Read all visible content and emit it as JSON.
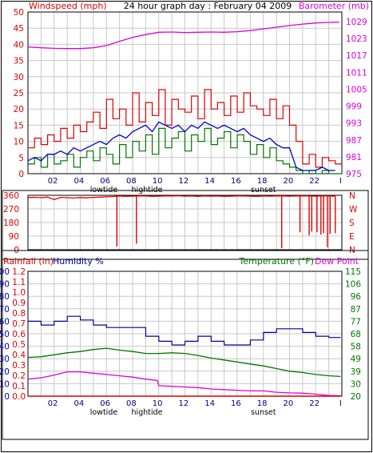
{
  "colors": {
    "windspeed": "#dd0000",
    "gust": "#dd0000",
    "average": "#0000cc",
    "barometer": "#dd00dd",
    "direction": "#dd0000",
    "rainfall": "#dd0000",
    "humidity": "#000099",
    "temperature": "#007700",
    "dewpoint": "#dd00dd",
    "grid": "#c8c8c8",
    "frame": "#000000"
  },
  "chart_data": [
    {
      "type": "line",
      "id": "wind",
      "title": "24 hour graph day : February 04 2009",
      "left_label": "Windspeed (mph)",
      "right_label": "Barometer (mb)",
      "left_ticks": [
        "0",
        "5",
        "10",
        "15",
        "20",
        "25",
        "30",
        "35",
        "40",
        "45",
        "50"
      ],
      "right_ticks": [
        "975",
        "981",
        "987",
        "993",
        "999",
        "1005",
        "1011",
        "1017",
        "1023",
        "1029"
      ],
      "ylim_left": [
        0,
        50
      ],
      "ylim_right": [
        975,
        1032.4
      ],
      "x_ticks": [
        "02",
        "04",
        "06",
        "08",
        "10",
        "12",
        "14",
        "16",
        "18",
        "20",
        "22",
        "I"
      ],
      "events": [
        {
          "label": "lowtide",
          "hour": 5.8
        },
        {
          "label": "hightide",
          "hour": 9.1
        },
        {
          "label": "sunset",
          "hour": 18.0
        }
      ],
      "series": [
        {
          "name": "gust",
          "hours": [
            0,
            0.5,
            1,
            1.5,
            2,
            2.5,
            3,
            3.5,
            4,
            4.5,
            5,
            5.5,
            6,
            6.5,
            7,
            7.5,
            8,
            8.5,
            9,
            9.5,
            10,
            10.5,
            11,
            11.5,
            12,
            12.5,
            13,
            13.5,
            14,
            14.5,
            15,
            15.5,
            16,
            16.5,
            17,
            17.5,
            18,
            18.5,
            19,
            19.5,
            20,
            20.5,
            21,
            21.5,
            22,
            22.5,
            23,
            23.5
          ],
          "values": [
            8,
            11,
            9,
            12,
            10,
            14,
            11,
            15,
            13,
            16,
            19,
            14,
            23,
            17,
            20,
            15,
            25,
            16,
            22,
            18,
            26,
            15,
            23,
            20,
            19,
            24,
            17,
            26,
            20,
            22,
            18,
            24,
            19,
            25,
            21,
            20,
            18,
            23,
            17,
            21,
            15,
            10,
            3,
            6,
            2,
            5,
            4,
            3
          ]
        },
        {
          "name": "windspeed",
          "hours": [
            0,
            0.5,
            1,
            1.5,
            2,
            2.5,
            3,
            3.5,
            4,
            4.5,
            5,
            5.5,
            6,
            6.5,
            7,
            7.5,
            8,
            8.5,
            9,
            9.5,
            10,
            10.5,
            11,
            11.5,
            12,
            12.5,
            13,
            13.5,
            14,
            14.5,
            15,
            15.5,
            16,
            16.5,
            17,
            17.5,
            18,
            18.5,
            19,
            19.5,
            20,
            20.5,
            21,
            21.5,
            22,
            22.5,
            23,
            23.5
          ],
          "values": [
            3,
            5,
            2,
            6,
            3,
            4,
            6,
            2,
            5,
            7,
            4,
            8,
            6,
            3,
            9,
            5,
            10,
            7,
            12,
            6,
            14,
            8,
            11,
            13,
            7,
            12,
            10,
            14,
            9,
            11,
            13,
            8,
            12,
            10,
            6,
            9,
            5,
            8,
            4,
            3,
            2,
            1,
            0,
            1,
            0,
            1,
            0,
            0
          ]
        },
        {
          "name": "average",
          "hours": [
            0,
            0.5,
            1,
            1.5,
            2,
            2.5,
            3,
            3.5,
            4,
            4.5,
            5,
            5.5,
            6,
            6.5,
            7,
            7.5,
            8,
            8.5,
            9,
            9.5,
            10,
            10.5,
            11,
            11.5,
            12,
            12.5,
            13,
            13.5,
            14,
            14.5,
            15,
            15.5,
            16,
            16.5,
            17,
            17.5,
            18,
            18.5,
            19,
            19.5,
            20,
            20.5,
            21,
            21.5,
            22,
            22.5,
            23,
            23.5
          ],
          "values": [
            4,
            5,
            4,
            6,
            6,
            7,
            6,
            8,
            7,
            8,
            9,
            10,
            9,
            11,
            12,
            11,
            13,
            14,
            15,
            13,
            16,
            15,
            14,
            15,
            13,
            15,
            14,
            16,
            15,
            14,
            15,
            14,
            13,
            14,
            12,
            11,
            10,
            11,
            9,
            8,
            8,
            2,
            1,
            1,
            1,
            2,
            1,
            1
          ]
        },
        {
          "name": "barometer",
          "axis": "right",
          "hours": [
            0,
            1,
            2,
            3,
            4,
            5,
            6,
            7,
            8,
            9,
            10,
            11,
            12,
            13,
            14,
            15,
            16,
            17,
            18,
            19,
            20,
            21,
            22,
            23,
            23.8
          ],
          "values": [
            1020,
            1019.7,
            1019.5,
            1019.4,
            1019.4,
            1019.7,
            1020.5,
            1022,
            1023.4,
            1024.4,
            1025.2,
            1025.3,
            1025.1,
            1025.2,
            1025.3,
            1025.2,
            1025.4,
            1025.8,
            1026.4,
            1027,
            1027.6,
            1028.1,
            1028.5,
            1028.7,
            1028.8
          ]
        }
      ]
    },
    {
      "type": "line",
      "id": "direction",
      "left_ticks": [
        "0",
        "90",
        "180",
        "270",
        "360"
      ],
      "right_ticks": [
        "N",
        "E",
        "S",
        "W",
        "N"
      ],
      "ylim": [
        0,
        360
      ],
      "series": [
        {
          "name": "direction",
          "hours": [
            0,
            0.5,
            1,
            1.5,
            2,
            2.5,
            3,
            3.5,
            4,
            4.5,
            5,
            5.5,
            6,
            6.5,
            7,
            7.5,
            8,
            8.5,
            9,
            9.5,
            10,
            10.5,
            11,
            11.5,
            12,
            12.5,
            13,
            13.5,
            14,
            14.5,
            15,
            15.5,
            16,
            16.5,
            17,
            17.5,
            18,
            18.5,
            19,
            19.5,
            20,
            20.5,
            21,
            21.5,
            22,
            22.5,
            23,
            23.5
          ],
          "values": [
            345,
            347,
            344,
            348,
            332,
            346,
            344,
            342,
            345,
            343,
            346,
            348,
            350,
            352,
            355,
            353,
            354,
            356,
            355,
            353,
            354,
            356,
            355,
            357,
            354,
            355,
            353,
            356,
            354,
            355,
            353,
            354,
            356,
            355,
            354,
            353,
            355,
            354,
            356,
            355,
            354,
            355,
            356,
            355,
            354,
            356,
            355,
            354
          ]
        },
        {
          "name": "direction_drops",
          "hours": [
            6.8,
            8.3,
            19.4,
            20.8,
            21.5,
            21.7,
            22.1,
            22.4,
            22.6,
            22.9,
            23.1,
            23.5
          ],
          "values": [
            20,
            40,
            10,
            115,
            95,
            120,
            115,
            100,
            110,
            15,
            105,
            110
          ]
        }
      ]
    },
    {
      "type": "line",
      "id": "weather",
      "rain_label": "Rainfall (in)",
      "humidity_label": "Humidity %",
      "temp_label": "Temperature (°F)",
      "dew_label": "Dew Point",
      "humidity_ticks": [
        "0",
        "10",
        "20",
        "30",
        "40",
        "50",
        "60",
        "70",
        "80",
        "90",
        "100"
      ],
      "rain_ticks": [
        "0.0",
        "0.1",
        "0.2",
        "0.3",
        "0.4",
        "0.5",
        "0.6",
        "0.7",
        "0.8",
        "0.9",
        "1.0",
        "1.1",
        "1.2"
      ],
      "temp_ticks": [
        "20",
        "30",
        "39",
        "49",
        "58",
        "68",
        "77",
        "87",
        "96",
        "106",
        "115"
      ],
      "ylim_humidity": [
        0,
        100
      ],
      "ylim_rain": [
        0,
        1.2
      ],
      "ylim_temp": [
        20,
        115
      ],
      "x_ticks": [
        "02",
        "04",
        "06",
        "08",
        "10",
        "12",
        "14",
        "16",
        "18",
        "20",
        "22",
        "I"
      ],
      "events": [
        {
          "label": "lowtide",
          "hour": 5.8
        },
        {
          "label": "hightide",
          "hour": 9.1
        },
        {
          "label": "sunset",
          "hour": 18.0
        }
      ],
      "series": [
        {
          "name": "humidity",
          "hours": [
            0,
            1,
            1.01,
            2,
            2.01,
            3,
            3.01,
            4,
            4.01,
            5,
            5.01,
            6,
            6.01,
            7,
            7.01,
            8,
            8.01,
            9,
            9.01,
            10,
            10.01,
            11,
            11.01,
            12,
            12.01,
            13,
            13.01,
            14,
            14.01,
            15,
            15.01,
            16,
            16.01,
            17,
            17.01,
            18,
            18.01,
            19,
            19.01,
            20,
            20.01,
            21,
            21.01,
            22,
            22.01,
            23,
            23.01,
            23.9
          ],
          "values": [
            60,
            60,
            57,
            57,
            60,
            60,
            64,
            64,
            61,
            61,
            57,
            57,
            55,
            55,
            55,
            55,
            55,
            55,
            48,
            48,
            44,
            44,
            41,
            41,
            44,
            44,
            48,
            48,
            44,
            44,
            41,
            41,
            41,
            41,
            45,
            45,
            51,
            51,
            54,
            54,
            54,
            54,
            51,
            51,
            48,
            48,
            47,
            47
          ]
        },
        {
          "name": "temperature",
          "hours": [
            0,
            1,
            2,
            3,
            4,
            5,
            6,
            7,
            8,
            9,
            10,
            11,
            12,
            13,
            14,
            15,
            16,
            17,
            18,
            19,
            20,
            21,
            22,
            23,
            23.9
          ],
          "values": [
            49.5,
            50,
            51.5,
            53,
            54,
            55.5,
            56.5,
            55,
            54,
            52.5,
            52.5,
            53,
            52.5,
            51,
            49,
            47.5,
            46,
            44.5,
            43,
            41,
            39,
            38,
            36.5,
            35.5,
            35
          ]
        },
        {
          "name": "dewpoint",
          "hours": [
            0,
            1,
            2,
            3,
            4,
            5,
            6,
            7,
            8,
            9,
            9.9,
            10,
            11,
            12,
            13,
            14,
            15,
            16,
            17,
            18,
            19,
            20,
            21,
            22,
            23,
            23.9
          ],
          "values": [
            33,
            34,
            36,
            38.5,
            38.5,
            37.5,
            36.5,
            35.5,
            34.5,
            33,
            32,
            28,
            27.5,
            27,
            26.5,
            25.5,
            25,
            24.5,
            24,
            24,
            23,
            22.5,
            22.3,
            21.5,
            20.5,
            20.3
          ]
        },
        {
          "name": "rainfall",
          "hours": [
            0,
            23.9
          ],
          "values": [
            0,
            0
          ]
        }
      ]
    }
  ]
}
